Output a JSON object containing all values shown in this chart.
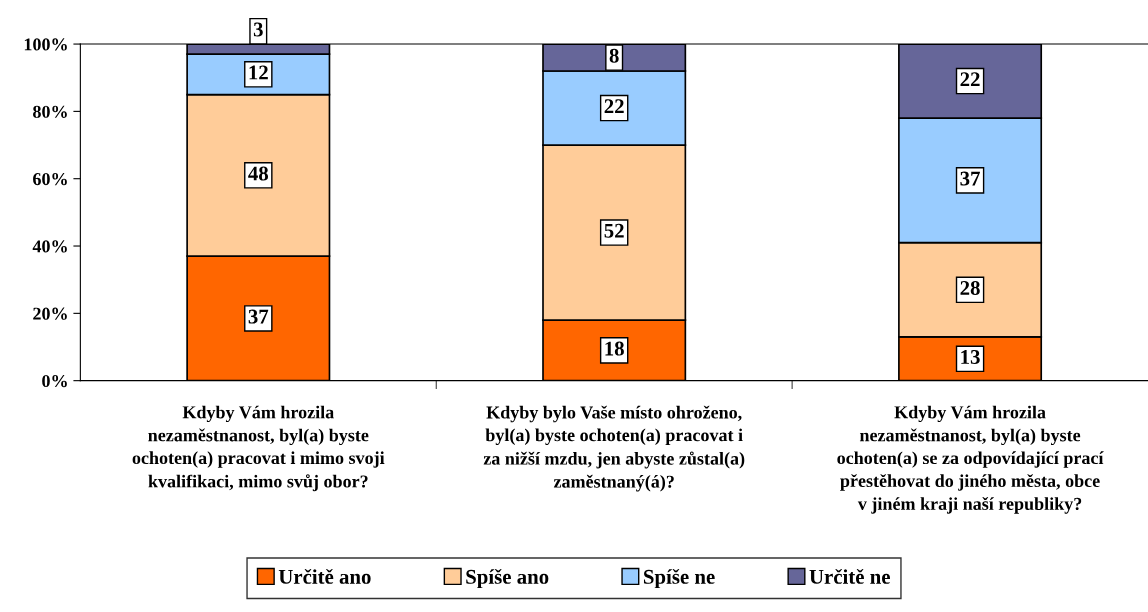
{
  "chart_data": {
    "type": "bar",
    "stacked": true,
    "categories": [
      "Kdyby Vám hrozila\nnezaměstnanost, byl(a) byste\nochoten(a) pracovat i mimo svoji\nkvalifikaci, mimo svůj obor?",
      "Kdyby bylo Vaše místo ohroženo,\nbyl(a) byste ochoten(a) pracovat i\nza nižší mzdu, jen abyste zůstal(a)\nzaměstnaný(á)?",
      "Kdyby Vám hrozila\nnezaměstnanost, byl(a) byste\nochoten(a) se za odpovídající prací\npřestěhovat do jiného města, obce\nv jiném kraji naší republiky?"
    ],
    "series": [
      {
        "name": "Určitě ano",
        "color": "#ff6600",
        "values": [
          37,
          18,
          13
        ]
      },
      {
        "name": "Spíše ano",
        "color": "#ffcc99",
        "values": [
          48,
          52,
          28
        ]
      },
      {
        "name": "Spíše ne",
        "color": "#99ccff",
        "values": [
          12,
          22,
          37
        ]
      },
      {
        "name": "Určitě ne",
        "color": "#666699",
        "values": [
          3,
          8,
          22
        ]
      }
    ],
    "ylim": [
      0,
      100
    ],
    "yticks": [
      {
        "value": 0,
        "label": "0%"
      },
      {
        "value": 20,
        "label": "20%"
      },
      {
        "value": 40,
        "label": "40%"
      },
      {
        "value": 60,
        "label": "60%"
      },
      {
        "value": 80,
        "label": "80%"
      },
      {
        "value": 100,
        "label": "100%"
      }
    ],
    "data_labels": true,
    "legend": "bottom",
    "grid": false
  }
}
